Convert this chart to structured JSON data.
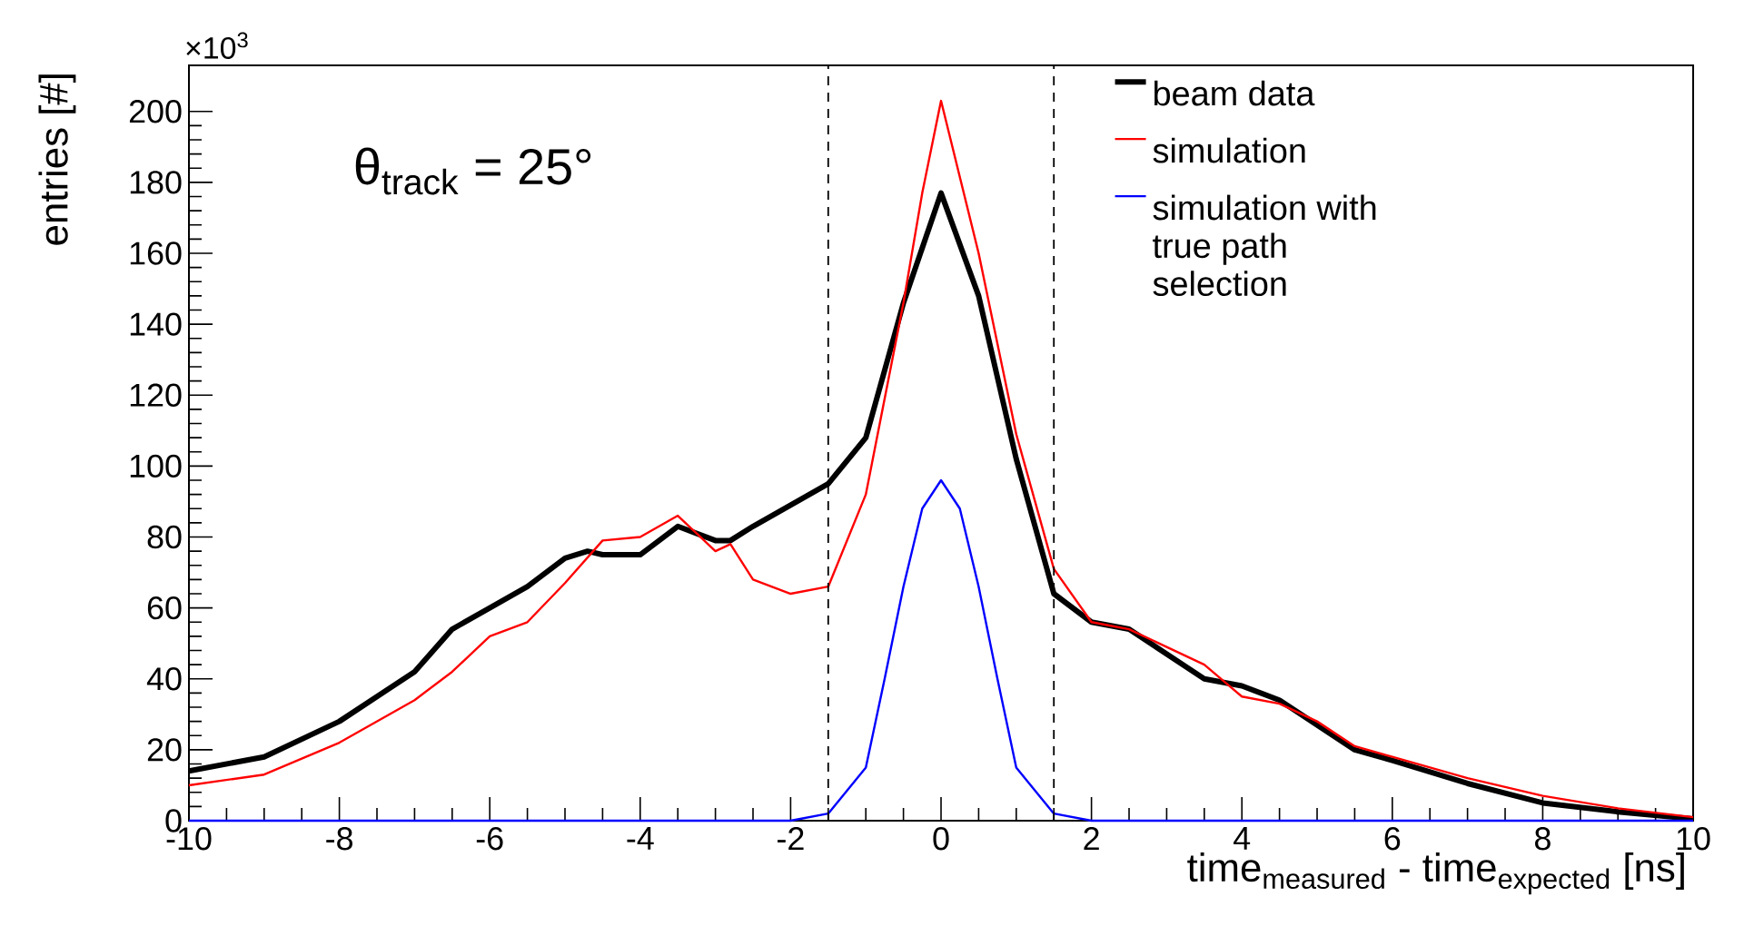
{
  "chart_data": {
    "type": "line",
    "xlabel": "time$_{measured}$ - time$_{expected}$ [ns]",
    "ylabel": "entries [#]",
    "annotations": [
      "×10$^{3}$",
      "θ$_{track}$ = 25°"
    ],
    "xlim": [
      -10,
      10
    ],
    "ylim": [
      0,
      213
    ],
    "xticks": [
      -10,
      -8,
      -6,
      -4,
      -2,
      0,
      2,
      4,
      6,
      8,
      10
    ],
    "yticks": [
      0,
      20,
      40,
      60,
      80,
      100,
      120,
      140,
      160,
      180,
      200
    ],
    "grid": false,
    "legend": "top right",
    "marker": "none",
    "line_style": "solid",
    "ref_lines": [
      {
        "axis": "x",
        "value": -1.5,
        "color": "#000000",
        "line_style": "dashed"
      },
      {
        "axis": "x",
        "value": 1.5,
        "color": "#000000",
        "line_style": "dashed"
      }
    ],
    "series": [
      {
        "name": "beam data",
        "color": "#000000",
        "x": [
          -10,
          -9,
          -8,
          -7,
          -6.5,
          -6,
          -5.5,
          -5,
          -4.7,
          -4.5,
          -4,
          -3.5,
          -3,
          -2.8,
          -2.5,
          -2,
          -1.5,
          -1,
          -0.5,
          0,
          0.5,
          1,
          1.5,
          2,
          2.5,
          3,
          3.5,
          4,
          4.5,
          5,
          5.5,
          6,
          7,
          8,
          9,
          10
        ],
        "values": [
          14,
          18,
          28,
          42,
          54,
          60,
          66,
          74,
          76,
          75,
          75,
          83,
          79,
          79,
          83,
          89,
          95,
          108,
          146,
          177,
          148,
          102,
          64,
          56,
          54,
          47,
          40,
          38,
          34,
          27,
          20,
          17,
          10.5,
          5,
          2.5,
          0.5
        ]
      },
      {
        "name": "simulation",
        "color": "#ff0000",
        "x": [
          -10,
          -9,
          -8,
          -7,
          -6.5,
          -6,
          -5.5,
          -5,
          -4.5,
          -4,
          -3.5,
          -3,
          -2.8,
          -2.5,
          -2,
          -1.5,
          -1,
          -0.5,
          -0.25,
          0,
          0.5,
          1,
          1.5,
          2,
          2.5,
          3,
          3.5,
          4,
          4.5,
          5,
          5.5,
          6,
          7,
          8,
          9,
          10
        ],
        "values": [
          10,
          13,
          22,
          34,
          42,
          52,
          56,
          67,
          79,
          80,
          86,
          76,
          78,
          68,
          64,
          66,
          92,
          146,
          177,
          203,
          160,
          109,
          71,
          56,
          54,
          49,
          44,
          35,
          33,
          28,
          21,
          18,
          12,
          7,
          3.5,
          1
        ]
      },
      {
        "name": "simulation with true path selection",
        "color": "#0000ff",
        "x": [
          -10,
          -2,
          -1.5,
          -1,
          -0.75,
          -0.5,
          -0.25,
          0,
          0.25,
          0.5,
          0.75,
          1,
          1.5,
          2,
          10
        ],
        "values": [
          0,
          0,
          2,
          15,
          40,
          66,
          88,
          96,
          88,
          66,
          40,
          15,
          2,
          0,
          0
        ]
      }
    ]
  }
}
